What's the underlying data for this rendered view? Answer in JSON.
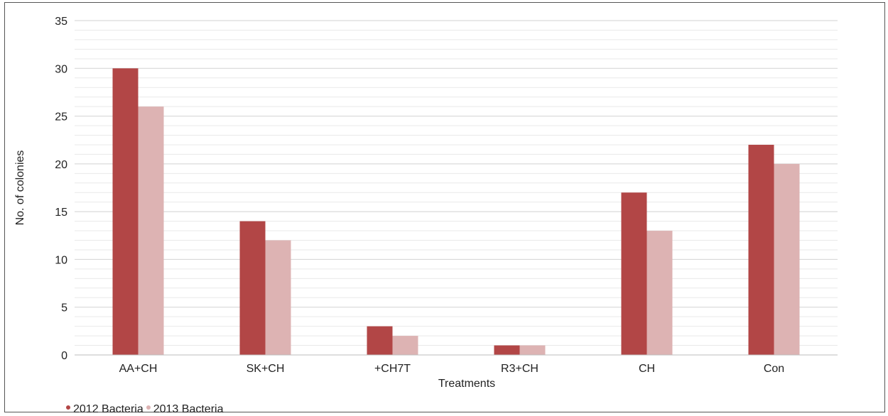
{
  "chart_data": {
    "type": "bar",
    "title": "",
    "xlabel": "Treatments",
    "ylabel": "No. of colonies",
    "ylim": [
      0,
      35
    ],
    "yticks": [
      0,
      5,
      10,
      15,
      20,
      25,
      30,
      35
    ],
    "minor_grid_step": 1,
    "grid": true,
    "legend_position": "bottom-left",
    "categories": [
      "AA+CH",
      "SK+CH",
      "+CH7T",
      "R3+CH",
      "CH",
      "Con"
    ],
    "series": [
      {
        "name": "2012 Bacteria",
        "color": "#b24646",
        "values": [
          30,
          14,
          3,
          1,
          17,
          22
        ]
      },
      {
        "name": "2013 Bacteria",
        "color": "#ddb3b3",
        "values": [
          26,
          12,
          2,
          1,
          13,
          20
        ]
      }
    ]
  }
}
